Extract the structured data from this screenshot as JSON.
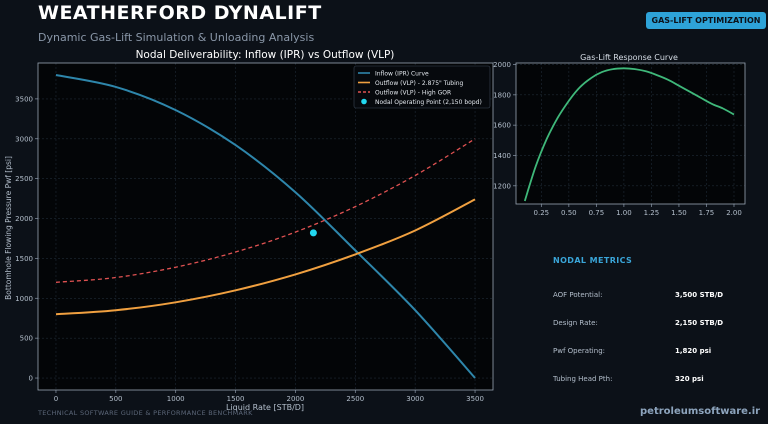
{
  "header": {
    "title": "WEATHERFORD DYNALIFT",
    "subtitle": "Dynamic Gas-Lift Simulation & Unloading Analysis",
    "badge": "GAS-LIFT OPTIMIZATION"
  },
  "footer": {
    "left": "TECHNICAL SOFTWARE GUIDE & PERFORMANCE BENCHMARK",
    "right": "petroleumsoftware.ir"
  },
  "colors": {
    "ipr": "#2e86ab",
    "vlp_tubing": "#f0a040",
    "vlp_high_gor": "#e05252",
    "operating_point": "#22d8f0",
    "response": "#3fb87a",
    "accent": "#2ea3d8"
  },
  "chart_data": [
    {
      "type": "line",
      "title": "Nodal Deliverability: Inflow (IPR) vs Outflow (VLP)",
      "xlabel": "Liquid Rate [STB/D]",
      "ylabel": "Bottomhole Flowing Pressure Pwf [psi]",
      "xlim": [
        -150,
        3650
      ],
      "ylim": [
        -150,
        3950
      ],
      "xticks": [
        0,
        500,
        1000,
        1500,
        2000,
        2500,
        3000,
        3500
      ],
      "yticks": [
        0,
        500,
        1000,
        1500,
        2000,
        2500,
        3000,
        3500
      ],
      "grid": true,
      "legend_position": "top-right",
      "series": [
        {
          "name": "Inflow (IPR) Curve",
          "style": "solid",
          "x": [
            0,
            500,
            1000,
            1500,
            2000,
            2500,
            3000,
            3500
          ],
          "values": [
            3800,
            3650,
            3360,
            2920,
            2330,
            1600,
            850,
            0
          ]
        },
        {
          "name": "Outflow (VLP) - 2.875\" Tubing",
          "style": "solid",
          "x": [
            0,
            500,
            1000,
            1500,
            2000,
            2500,
            3000,
            3500
          ],
          "values": [
            800,
            850,
            950,
            1100,
            1300,
            1550,
            1850,
            2240
          ]
        },
        {
          "name": "Outflow (VLP) - High GOR",
          "style": "dashed",
          "x": [
            0,
            500,
            1000,
            1500,
            2000,
            2500,
            3000,
            3500
          ],
          "values": [
            1200,
            1260,
            1390,
            1580,
            1830,
            2150,
            2540,
            3000
          ]
        }
      ],
      "points": [
        {
          "name": "Nodal Operating Point (2,150 bopd)",
          "x": 2150,
          "y": 1820
        }
      ]
    },
    {
      "type": "line",
      "title": "Gas-Lift Response Curve",
      "xlim": [
        0.02,
        2.1
      ],
      "ylim": [
        1080,
        2010
      ],
      "xticks": [
        0.25,
        0.5,
        0.75,
        1.0,
        1.25,
        1.5,
        1.75,
        2.0
      ],
      "xtick_labels": [
        "0.25",
        "0.50",
        "0.75",
        "1.00",
        "1.25",
        "1.50",
        "1.75",
        "2.00"
      ],
      "yticks": [
        1200,
        1400,
        1600,
        1800,
        2000
      ],
      "grid": true,
      "series": [
        {
          "x": [
            0.1,
            0.2,
            0.3,
            0.4,
            0.5,
            0.6,
            0.7,
            0.8,
            0.9,
            1.0,
            1.1,
            1.2,
            1.3,
            1.4,
            1.5,
            1.6,
            1.7,
            1.8,
            1.9,
            2.0
          ],
          "values": [
            1100,
            1330,
            1510,
            1650,
            1760,
            1850,
            1910,
            1950,
            1970,
            1975,
            1970,
            1955,
            1930,
            1900,
            1860,
            1820,
            1780,
            1740,
            1710,
            1670
          ]
        }
      ]
    }
  ],
  "metrics": {
    "title": "NODAL METRICS",
    "items": [
      {
        "label": "AOF Potential:",
        "value": "3,500 STB/D"
      },
      {
        "label": "Design Rate:",
        "value": "2,150 STB/D"
      },
      {
        "label": "Pwf Operating:",
        "value": "1,820 psi"
      },
      {
        "label": "Tubing Head Pth:",
        "value": "320 psi"
      }
    ]
  }
}
